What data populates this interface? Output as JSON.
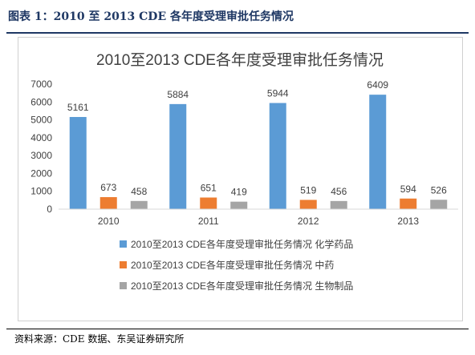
{
  "figure": {
    "caption": "图表 1：2010 至 2013 CDE 各年度受理审批任务情况",
    "source": "资料来源：CDE 数据、东吴证券研究所"
  },
  "colors": {
    "caption": "#1f3864",
    "series": [
      "#5b9bd5",
      "#ed7d31",
      "#a5a5a5"
    ],
    "axis": "#d9d9d9",
    "text": "#404040"
  },
  "chart_data": {
    "type": "bar",
    "title": "2010至2013 CDE各年度受理审批任务情况",
    "categories": [
      "2010",
      "2011",
      "2012",
      "2013"
    ],
    "series": [
      {
        "name": "2010至2013 CDE各年度受理审批任务情况 化学药品",
        "values": [
          5161,
          5884,
          5944,
          6409
        ]
      },
      {
        "name": "2010至2013 CDE各年度受理审批任务情况 中药",
        "values": [
          673,
          651,
          519,
          594
        ]
      },
      {
        "name": "2010至2013 CDE各年度受理审批任务情况 生物制品",
        "values": [
          458,
          419,
          456,
          526
        ]
      }
    ],
    "ylim": [
      0,
      7000
    ],
    "yticks": [
      "0",
      "1000",
      "2000",
      "3000",
      "4000",
      "5000",
      "6000",
      "7000"
    ],
    "grid": false,
    "data_labels": true,
    "legend": "bottom"
  }
}
